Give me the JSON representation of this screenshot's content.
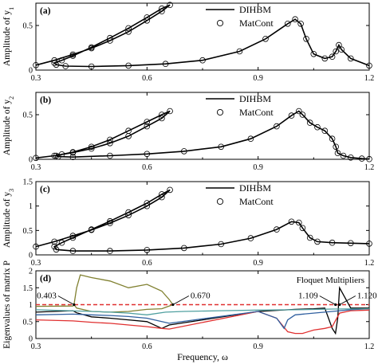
{
  "chart_data": [
    {
      "type": "line",
      "panel_label": "(a)",
      "ylabel": "Amplitude of y",
      "ylabel_sub": "1",
      "xlim": [
        0.3,
        1.2
      ],
      "ylim": [
        0,
        0.75
      ],
      "x_ticks": [
        0.3,
        0.6,
        0.9,
        1.2
      ],
      "x_tick_labels": [
        "0.3",
        "0.6",
        "0.9",
        "1.2"
      ],
      "y_ticks": [
        0,
        0.5
      ],
      "y_tick_labels": [
        "0",
        "0.5"
      ],
      "legend": {
        "position": "top-right",
        "entries": [
          "DIHBM",
          "MatCont"
        ]
      },
      "series": [
        {
          "name": "DIHBM",
          "style": "solid-line",
          "x": [
            0.3,
            0.35,
            0.4,
            0.45,
            0.5,
            0.55,
            0.6,
            0.64,
            0.662,
            0.64,
            0.6,
            0.55,
            0.5,
            0.45,
            0.4,
            0.37,
            0.35,
            0.355,
            0.38,
            0.45,
            0.55,
            0.65,
            0.75,
            0.85,
            0.92,
            0.98,
            1.0,
            1.015,
            1.03,
            1.05,
            1.08,
            1.1,
            1.11,
            1.118,
            1.125,
            1.15,
            1.2
          ],
          "y": [
            0.055,
            0.11,
            0.175,
            0.245,
            0.33,
            0.43,
            0.555,
            0.66,
            0.73,
            0.69,
            0.59,
            0.47,
            0.36,
            0.255,
            0.16,
            0.11,
            0.08,
            0.06,
            0.045,
            0.04,
            0.05,
            0.07,
            0.11,
            0.21,
            0.35,
            0.52,
            0.57,
            0.52,
            0.35,
            0.18,
            0.13,
            0.15,
            0.21,
            0.28,
            0.23,
            0.13,
            0.05
          ]
        },
        {
          "name": "MatCont",
          "style": "open-circle",
          "x": [
            0.3,
            0.35,
            0.4,
            0.45,
            0.5,
            0.55,
            0.6,
            0.64,
            0.662,
            0.64,
            0.6,
            0.55,
            0.5,
            0.45,
            0.4,
            0.37,
            0.35,
            0.355,
            0.38,
            0.45,
            0.55,
            0.65,
            0.75,
            0.85,
            0.92,
            0.98,
            1.0,
            1.015,
            1.03,
            1.05,
            1.08,
            1.1,
            1.11,
            1.118,
            1.125,
            1.15,
            1.2
          ],
          "y": [
            0.055,
            0.11,
            0.175,
            0.245,
            0.33,
            0.43,
            0.555,
            0.66,
            0.73,
            0.69,
            0.59,
            0.47,
            0.36,
            0.255,
            0.16,
            0.11,
            0.08,
            0.06,
            0.045,
            0.04,
            0.05,
            0.07,
            0.11,
            0.21,
            0.35,
            0.52,
            0.57,
            0.52,
            0.35,
            0.18,
            0.13,
            0.15,
            0.21,
            0.28,
            0.23,
            0.13,
            0.05
          ]
        }
      ]
    },
    {
      "type": "line",
      "panel_label": "(b)",
      "ylabel": "Amplitude of y",
      "ylabel_sub": "2",
      "xlim": [
        0.3,
        1.2
      ],
      "ylim": [
        0,
        0.75
      ],
      "x_ticks": [
        0.3,
        0.6,
        0.9,
        1.2
      ],
      "x_tick_labels": [
        "0.3",
        "0.6",
        "0.9",
        "1.2"
      ],
      "y_ticks": [
        0,
        0.5
      ],
      "y_tick_labels": [
        "0",
        "0.5"
      ],
      "legend": {
        "position": "top-right",
        "entries": [
          "DIHBM",
          "MatCont"
        ]
      },
      "series": [
        {
          "name": "DIHBM",
          "style": "solid-line",
          "x": [
            0.3,
            0.35,
            0.4,
            0.45,
            0.5,
            0.55,
            0.6,
            0.64,
            0.662,
            0.64,
            0.6,
            0.55,
            0.5,
            0.45,
            0.4,
            0.37,
            0.355,
            0.36,
            0.4,
            0.5,
            0.6,
            0.7,
            0.8,
            0.88,
            0.95,
            0.99,
            1.01,
            1.02,
            1.04,
            1.06,
            1.08,
            1.1,
            1.11,
            1.115,
            1.13,
            1.15,
            1.18,
            1.2
          ],
          "y": [
            0.015,
            0.04,
            0.075,
            0.12,
            0.18,
            0.26,
            0.37,
            0.46,
            0.54,
            0.5,
            0.42,
            0.32,
            0.22,
            0.14,
            0.08,
            0.055,
            0.04,
            0.03,
            0.025,
            0.04,
            0.06,
            0.09,
            0.14,
            0.23,
            0.37,
            0.49,
            0.54,
            0.5,
            0.41,
            0.36,
            0.32,
            0.23,
            0.14,
            0.07,
            0.04,
            0.02,
            0.008,
            0.003
          ]
        },
        {
          "name": "MatCont",
          "style": "open-circle",
          "x": [
            0.3,
            0.35,
            0.4,
            0.45,
            0.5,
            0.55,
            0.6,
            0.64,
            0.662,
            0.64,
            0.6,
            0.55,
            0.5,
            0.45,
            0.4,
            0.37,
            0.355,
            0.36,
            0.4,
            0.5,
            0.6,
            0.7,
            0.8,
            0.88,
            0.95,
            0.99,
            1.01,
            1.02,
            1.04,
            1.06,
            1.08,
            1.1,
            1.11,
            1.115,
            1.13,
            1.15,
            1.18,
            1.2
          ],
          "y": [
            0.015,
            0.04,
            0.075,
            0.12,
            0.18,
            0.26,
            0.37,
            0.46,
            0.54,
            0.5,
            0.42,
            0.32,
            0.22,
            0.14,
            0.08,
            0.055,
            0.04,
            0.03,
            0.025,
            0.04,
            0.06,
            0.09,
            0.14,
            0.23,
            0.37,
            0.49,
            0.54,
            0.5,
            0.41,
            0.36,
            0.32,
            0.23,
            0.14,
            0.07,
            0.04,
            0.02,
            0.008,
            0.003
          ]
        }
      ]
    },
    {
      "type": "line",
      "panel_label": "(c)",
      "ylabel": "Amplitude of y",
      "ylabel_sub": "3",
      "xlim": [
        0.3,
        1.2
      ],
      "ylim": [
        0,
        1.5
      ],
      "x_ticks": [
        0.3,
        0.6,
        0.9,
        1.2
      ],
      "x_tick_labels": [
        "0.3",
        "0.6",
        "0.9",
        "1.2"
      ],
      "y_ticks": [
        0,
        0.5,
        1,
        1.5
      ],
      "y_tick_labels": [
        "0",
        "0.5",
        "1",
        "1.5"
      ],
      "legend": {
        "position": "top-right",
        "entries": [
          "DIHBM",
          "MatCont"
        ]
      },
      "series": [
        {
          "name": "DIHBM",
          "style": "solid-line",
          "x": [
            0.3,
            0.35,
            0.4,
            0.45,
            0.5,
            0.55,
            0.6,
            0.64,
            0.662,
            0.64,
            0.6,
            0.55,
            0.5,
            0.45,
            0.4,
            0.37,
            0.35,
            0.355,
            0.4,
            0.5,
            0.6,
            0.7,
            0.8,
            0.88,
            0.95,
            0.99,
            1.01,
            1.02,
            1.04,
            1.06,
            1.1,
            1.15,
            1.2
          ],
          "y": [
            0.17,
            0.27,
            0.39,
            0.51,
            0.65,
            0.81,
            1.0,
            1.18,
            1.33,
            1.24,
            1.06,
            0.87,
            0.69,
            0.52,
            0.35,
            0.25,
            0.17,
            0.11,
            0.08,
            0.08,
            0.1,
            0.14,
            0.22,
            0.34,
            0.52,
            0.68,
            0.66,
            0.55,
            0.35,
            0.27,
            0.25,
            0.24,
            0.23
          ]
        },
        {
          "name": "MatCont",
          "style": "open-circle",
          "x": [
            0.3,
            0.35,
            0.4,
            0.45,
            0.5,
            0.55,
            0.6,
            0.64,
            0.662,
            0.64,
            0.6,
            0.55,
            0.5,
            0.45,
            0.4,
            0.37,
            0.35,
            0.355,
            0.4,
            0.5,
            0.6,
            0.7,
            0.8,
            0.88,
            0.95,
            0.99,
            1.01,
            1.02,
            1.04,
            1.06,
            1.1,
            1.15,
            1.2
          ],
          "y": [
            0.17,
            0.27,
            0.39,
            0.51,
            0.65,
            0.81,
            1.0,
            1.18,
            1.33,
            1.24,
            1.06,
            0.87,
            0.69,
            0.52,
            0.35,
            0.25,
            0.17,
            0.11,
            0.08,
            0.08,
            0.1,
            0.14,
            0.22,
            0.34,
            0.52,
            0.68,
            0.66,
            0.55,
            0.35,
            0.27,
            0.25,
            0.24,
            0.23
          ]
        }
      ]
    },
    {
      "type": "line",
      "panel_label": "(d)",
      "ylabel": "Eigenvalues of matrix P",
      "xlabel": "Frequency, ω",
      "title": "Floquet Multipliers",
      "xlim": [
        0.3,
        1.2
      ],
      "ylim": [
        0,
        2.0
      ],
      "x_ticks": [
        0.3,
        0.6,
        0.9,
        1.2
      ],
      "x_tick_labels": [
        "0.3",
        "0.6",
        "0.9",
        "1.2"
      ],
      "y_ticks": [
        0,
        0.5,
        1,
        1.5,
        2
      ],
      "y_tick_labels": [
        "0",
        "0.5",
        "1",
        "1.5",
        "2"
      ],
      "reference_line": {
        "y": 1.0,
        "style": "dashed",
        "color": "#e03030"
      },
      "annotations": [
        {
          "text": "0.403",
          "x": 0.403,
          "y": 1.0,
          "label_side": "left"
        },
        {
          "text": "0.670",
          "x": 0.67,
          "y": 1.0,
          "label_side": "right"
        },
        {
          "text": "1.109",
          "x": 1.109,
          "y": 1.0,
          "label_side": "left"
        },
        {
          "text": "1.120",
          "x": 1.12,
          "y": 1.0,
          "label_side": "right"
        }
      ],
      "series": [
        {
          "color": "#808030",
          "x": [
            0.3,
            0.4,
            0.403,
            0.41,
            0.42,
            0.45,
            0.5,
            0.55,
            0.6,
            0.64,
            0.66,
            0.67,
            0.64,
            0.6,
            0.55,
            0.5,
            0.45,
            0.41,
            0.403
          ],
          "y": [
            0.95,
            0.96,
            1.0,
            1.5,
            1.88,
            1.8,
            1.7,
            1.5,
            1.6,
            1.4,
            1.15,
            1.0,
            0.88,
            0.86,
            0.8,
            0.78,
            0.8,
            0.9,
            1.0
          ]
        },
        {
          "color": "#000000",
          "x": [
            0.3,
            0.35,
            0.4,
            0.41,
            0.45,
            0.5,
            0.55,
            0.6,
            0.64,
            0.66,
            0.9,
            1.0,
            1.05,
            1.08,
            1.1,
            1.109,
            1.115,
            1.12,
            1.15,
            1.2
          ],
          "y": [
            0.78,
            0.8,
            0.82,
            0.76,
            0.64,
            0.6,
            0.55,
            0.5,
            0.3,
            0.4,
            0.8,
            0.86,
            0.88,
            0.9,
            0.3,
            0.15,
            0.6,
            1.5,
            0.9,
            0.9
          ]
        },
        {
          "color": "#e03030",
          "x": [
            0.3,
            0.4,
            0.45,
            0.5,
            0.55,
            0.6,
            0.64,
            0.66,
            0.9,
            0.95,
            0.98,
            1.0,
            1.02,
            1.05,
            1.08,
            1.1,
            1.12,
            1.15,
            1.2
          ],
          "y": [
            0.55,
            0.52,
            0.48,
            0.45,
            0.4,
            0.35,
            0.3,
            0.28,
            0.8,
            0.6,
            0.2,
            0.15,
            0.15,
            0.25,
            0.3,
            0.35,
            0.75,
            0.82,
            0.84
          ]
        },
        {
          "color": "#3060a0",
          "x": [
            0.3,
            0.4,
            0.45,
            0.5,
            0.55,
            0.6,
            0.64,
            0.66,
            0.9,
            0.95,
            0.97,
            0.98,
            1.0,
            1.05,
            1.1,
            1.15,
            1.2
          ],
          "y": [
            0.7,
            0.72,
            0.7,
            0.68,
            0.65,
            0.6,
            0.5,
            0.45,
            0.8,
            0.6,
            0.3,
            0.55,
            0.7,
            0.75,
            0.8,
            0.85,
            0.88
          ]
        },
        {
          "color": "#50a0a0",
          "x": [
            0.3,
            0.45,
            0.5,
            0.55,
            0.6,
            0.65,
            0.7,
            0.8,
            0.9,
            1.0,
            1.1,
            1.2
          ],
          "y": [
            0.85,
            0.8,
            0.78,
            0.75,
            0.7,
            0.78,
            0.8,
            0.82,
            0.84,
            0.85,
            0.87,
            0.88
          ]
        }
      ]
    }
  ]
}
